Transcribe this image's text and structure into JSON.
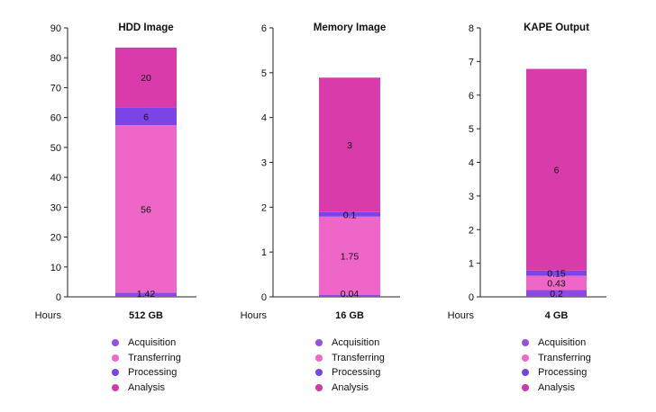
{
  "chart_data": [
    {
      "type": "bar",
      "stacked": true,
      "title": "HDD Image",
      "xlabel": "Hours",
      "categories": [
        "512 GB"
      ],
      "ylim": [
        0,
        90
      ],
      "yticks": [
        0,
        10,
        20,
        30,
        40,
        50,
        60,
        70,
        80,
        90
      ],
      "grid": false,
      "legend": "bottom",
      "series": [
        {
          "name": "Acquisition",
          "values": [
            1.42
          ],
          "label": "1.42"
        },
        {
          "name": "Transferring",
          "values": [
            56
          ],
          "label": "56"
        },
        {
          "name": "Processing",
          "values": [
            6
          ],
          "label": "6"
        },
        {
          "name": "Analysis",
          "values": [
            20
          ],
          "label": "20"
        }
      ]
    },
    {
      "type": "bar",
      "stacked": true,
      "title": "Memory Image",
      "xlabel": "Hours",
      "categories": [
        "16 GB"
      ],
      "ylim": [
        0,
        6
      ],
      "yticks": [
        0,
        1,
        2,
        3,
        4,
        5,
        6
      ],
      "grid": false,
      "legend": "bottom",
      "series": [
        {
          "name": "Acquisition",
          "values": [
            0.04
          ],
          "label": "0.04"
        },
        {
          "name": "Transferring",
          "values": [
            1.75
          ],
          "label": "1.75"
        },
        {
          "name": "Processing",
          "values": [
            0.1
          ],
          "label": "0.1"
        },
        {
          "name": "Analysis",
          "values": [
            3
          ],
          "label": "3"
        }
      ]
    },
    {
      "type": "bar",
      "stacked": true,
      "title": "KAPE Output",
      "xlabel": "Hours",
      "categories": [
        "4 GB"
      ],
      "ylim": [
        0,
        8
      ],
      "yticks": [
        0,
        1,
        2,
        3,
        4,
        5,
        6,
        7,
        8
      ],
      "grid": false,
      "legend": "bottom",
      "series": [
        {
          "name": "Acquisition",
          "values": [
            0.2
          ],
          "label": "0.2"
        },
        {
          "name": "Transferring",
          "values": [
            0.43
          ],
          "label": "0.43"
        },
        {
          "name": "Processing",
          "values": [
            0.15
          ],
          "label": "0.15"
        },
        {
          "name": "Analysis",
          "values": [
            6
          ],
          "label": "6"
        }
      ]
    }
  ],
  "colors": {
    "Acquisition": "#8a4be0",
    "Transferring": "#ee66c8",
    "Processing": "#7a44e6",
    "Analysis": "#d93bab"
  },
  "legend_dot_colors": {
    "Acquisition": "#9450e2",
    "Transferring": "#ee6ac8",
    "Processing": "#7446e0",
    "Analysis": "#d03aa8"
  }
}
